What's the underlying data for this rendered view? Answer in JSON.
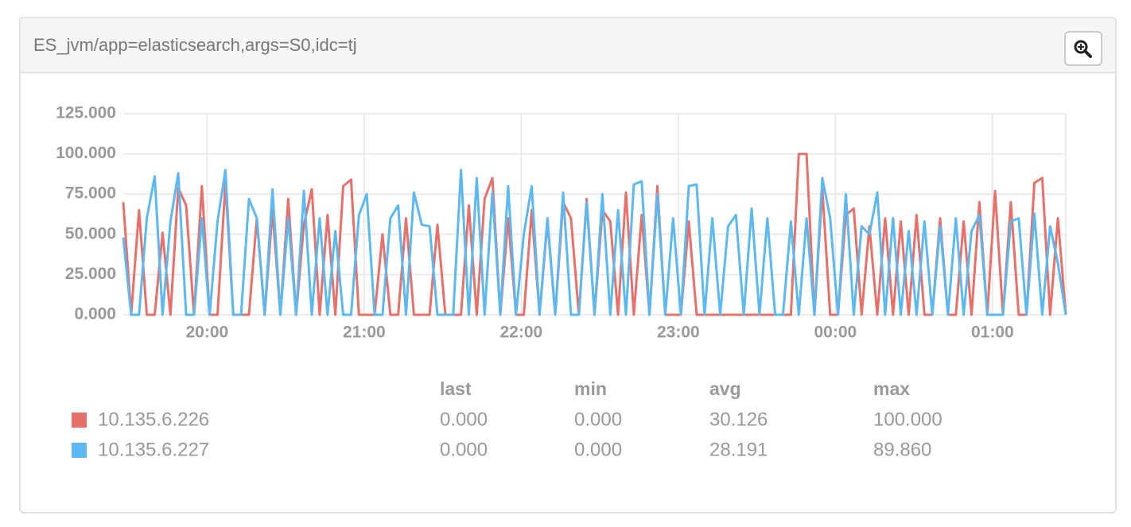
{
  "chart_data": {
    "type": "line",
    "title": "ES_jvm/app=elasticsearch,args=S0,idc=tj",
    "x": [
      "19:28",
      "19:31",
      "19:34",
      "19:37",
      "19:40",
      "19:43",
      "19:46",
      "19:49",
      "19:52",
      "19:55",
      "19:58",
      "20:01",
      "20:04",
      "20:07",
      "20:10",
      "20:13",
      "20:16",
      "20:19",
      "20:22",
      "20:25",
      "20:28",
      "20:31",
      "20:34",
      "20:37",
      "20:40",
      "20:43",
      "20:46",
      "20:49",
      "20:52",
      "20:55",
      "20:58",
      "21:01",
      "21:04",
      "21:07",
      "21:10",
      "21:13",
      "21:16",
      "21:19",
      "21:22",
      "21:25",
      "21:28",
      "21:31",
      "21:34",
      "21:37",
      "21:40",
      "21:43",
      "21:46",
      "21:49",
      "21:52",
      "21:55",
      "21:58",
      "22:01",
      "22:04",
      "22:07",
      "22:10",
      "22:13",
      "22:16",
      "22:19",
      "22:22",
      "22:25",
      "22:28",
      "22:31",
      "22:34",
      "22:37",
      "22:40",
      "22:43",
      "22:46",
      "22:49",
      "22:52",
      "22:55",
      "22:58",
      "23:01",
      "23:04",
      "23:07",
      "23:10",
      "23:13",
      "23:16",
      "23:19",
      "23:22",
      "23:25",
      "23:28",
      "23:31",
      "23:34",
      "23:37",
      "23:40",
      "23:43",
      "23:46",
      "23:49",
      "23:52",
      "23:55",
      "23:58",
      "00:01",
      "00:04",
      "00:07",
      "00:10",
      "00:13",
      "00:16",
      "00:19",
      "00:22",
      "00:25",
      "00:28",
      "00:31",
      "00:34",
      "00:37",
      "00:40",
      "00:43",
      "00:46",
      "00:49",
      "00:52",
      "00:55",
      "00:58",
      "01:01",
      "01:04",
      "01:07",
      "01:10",
      "01:13",
      "01:16",
      "01:19",
      "01:22",
      "01:25",
      "01:28"
    ],
    "series": [
      {
        "name": "10.135.6.226",
        "color": "#e8706a",
        "values": [
          70,
          0,
          65,
          0,
          0,
          51,
          0,
          79,
          68,
          0,
          80,
          0,
          0,
          82,
          0,
          0,
          0,
          60,
          0,
          65,
          0,
          72,
          0,
          56,
          78,
          0,
          62,
          0,
          80,
          84,
          0,
          0,
          0,
          50,
          0,
          0,
          60,
          0,
          0,
          0,
          56,
          0,
          0,
          0,
          68,
          0,
          72,
          85,
          0,
          60,
          0,
          0,
          65,
          0,
          58,
          0,
          70,
          60,
          0,
          72,
          0,
          65,
          58,
          0,
          76,
          0,
          62,
          0,
          80,
          0,
          0,
          0,
          58,
          0,
          0,
          0,
          0,
          0,
          0,
          0,
          0,
          0,
          0,
          0,
          0,
          0,
          100,
          100,
          0,
          78,
          0,
          0,
          62,
          66,
          0,
          55,
          0,
          60,
          0,
          58,
          0,
          62,
          0,
          0,
          60,
          0,
          0,
          58,
          0,
          70,
          0,
          77,
          0,
          70,
          0,
          0,
          82,
          85,
          0,
          60,
          0
        ],
        "summary": [
          {
            "value": 0,
            "label": "0.000"
          },
          {
            "value": 0,
            "label": "0.000"
          },
          {
            "value": 30.126,
            "label": "30.126"
          },
          {
            "value": 100,
            "label": "100.000"
          }
        ]
      },
      {
        "name": "10.135.6.227",
        "color": "#5bb8f0",
        "values": [
          48,
          0,
          0,
          60,
          86,
          0,
          58,
          88,
          0,
          0,
          60,
          0,
          58,
          90,
          0,
          0,
          72,
          60,
          0,
          78,
          0,
          60,
          0,
          77,
          0,
          60,
          0,
          52,
          0,
          0,
          62,
          75,
          0,
          0,
          60,
          68,
          0,
          76,
          56,
          55,
          0,
          0,
          0,
          90,
          0,
          85,
          0,
          76,
          0,
          80,
          0,
          50,
          80,
          0,
          60,
          0,
          76,
          0,
          0,
          70,
          0,
          75,
          0,
          65,
          0,
          81,
          83,
          0,
          75,
          0,
          60,
          0,
          80,
          81,
          0,
          60,
          0,
          55,
          62,
          0,
          66,
          0,
          60,
          0,
          0,
          58,
          0,
          60,
          0,
          85,
          60,
          0,
          75,
          0,
          55,
          50,
          76,
          0,
          60,
          0,
          52,
          0,
          58,
          0,
          55,
          0,
          60,
          0,
          52,
          62,
          0,
          0,
          0,
          58,
          60,
          0,
          63,
          0,
          55,
          32,
          0
        ],
        "summary": [
          {
            "value": 0,
            "label": "0.000"
          },
          {
            "value": 0,
            "label": "0.000"
          },
          {
            "value": 28.191,
            "label": "28.191"
          },
          {
            "value": 89.86,
            "label": "89.860"
          }
        ]
      }
    ],
    "summary_columns": [
      "last",
      "min",
      "avg",
      "max"
    ],
    "xlim": [
      "19:28",
      "01:28"
    ],
    "xticks": [
      "20:00",
      "21:00",
      "22:00",
      "23:00",
      "00:00",
      "01:00"
    ],
    "ylim": [
      0,
      125
    ],
    "yticks": [
      {
        "value": 0,
        "label": "0.000"
      },
      {
        "value": 25,
        "label": "25.000"
      },
      {
        "value": 50,
        "label": "50.000"
      },
      {
        "value": 75,
        "label": "75.000"
      },
      {
        "value": 100,
        "label": "100.000"
      },
      {
        "value": 125,
        "label": "125.000"
      }
    ],
    "grid": true
  }
}
